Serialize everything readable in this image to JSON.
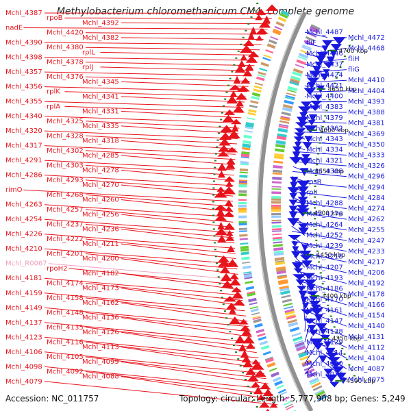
{
  "title": "Methylobacterium chloromethanicum CM4, complete genome",
  "footer": {
    "accession": "Accession: NC_011757",
    "topology": "Topology: circular; Length: 5,777,908 bp; Genes: 5,249"
  },
  "colors": {
    "forward": "#e8141c",
    "reverse": "#1818e0",
    "rna": "#f0a0c0",
    "backbone": "#909090",
    "tick": "#1a7a1a"
  },
  "scale_labels": [
    "4700 kbp",
    "4650 kbp",
    "4600 kbp",
    "4550 kbp",
    "4500 kbp",
    "4450 kbp",
    "4400 kbp",
    "4350 kbp",
    "4300 kbp"
  ],
  "left_labels": [
    {
      "t": "Mchl_4387",
      "k": "f"
    },
    {
      "t": "rpoB",
      "k": "f"
    },
    {
      "t": "Mchl_4392",
      "k": "f"
    },
    {
      "t": "nadE",
      "k": "f"
    },
    {
      "t": "Mchl_4420",
      "k": "f"
    },
    {
      "t": "Mchl_4382",
      "k": "f"
    },
    {
      "t": "Mchl_4390",
      "k": "f"
    },
    {
      "t": "Mchl_4380",
      "k": "f"
    },
    {
      "t": "rplL",
      "k": "f"
    },
    {
      "t": "Mchl_4398",
      "k": "f"
    },
    {
      "t": "Mchl_4378",
      "k": "f"
    },
    {
      "t": "rplJ",
      "k": "f"
    },
    {
      "t": "Mchl_4357",
      "k": "f"
    },
    {
      "t": "Mchl_4376",
      "k": "f"
    },
    {
      "t": "Mchl_4345",
      "k": "f"
    },
    {
      "t": "Mchl_4356",
      "k": "f"
    },
    {
      "t": "rplK",
      "k": "f"
    },
    {
      "t": "Mchl_4341",
      "k": "f"
    },
    {
      "t": "Mchl_4355",
      "k": "f"
    },
    {
      "t": "rplA",
      "k": "f"
    },
    {
      "t": "Mchl_4331",
      "k": "f"
    },
    {
      "t": "Mchl_4340",
      "k": "f"
    },
    {
      "t": "Mchl_4325",
      "k": "f"
    },
    {
      "t": "Mchl_4335",
      "k": "f"
    },
    {
      "t": "Mchl_4320",
      "k": "f"
    },
    {
      "t": "Mchl_4328",
      "k": "f"
    },
    {
      "t": "Mchl_4318",
      "k": "f"
    },
    {
      "t": "Mchl_4317",
      "k": "f"
    },
    {
      "t": "Mchl_4302",
      "k": "f"
    },
    {
      "t": "Mchl_4285",
      "k": "f"
    },
    {
      "t": "Mchl_4291",
      "k": "f"
    },
    {
      "t": "Mchl_4303",
      "k": "f"
    },
    {
      "t": "Mchl_4278",
      "k": "f"
    },
    {
      "t": "Mchl_4286",
      "k": "f"
    },
    {
      "t": "Mchl_4293",
      "k": "f"
    },
    {
      "t": "Mchl_4270",
      "k": "f"
    },
    {
      "t": "rimO",
      "k": "f"
    },
    {
      "t": "Mchl_4268",
      "k": "f"
    },
    {
      "t": "Mchl_4260",
      "k": "f"
    },
    {
      "t": "Mchl_4263",
      "k": "f"
    },
    {
      "t": "Mchl_4257",
      "k": "f"
    },
    {
      "t": "Mchl_4256",
      "k": "f"
    },
    {
      "t": "Mchl_4254",
      "k": "f"
    },
    {
      "t": "Mchl_4237",
      "k": "f"
    },
    {
      "t": "Mchl_4236",
      "k": "f"
    },
    {
      "t": "Mchl_4226",
      "k": "f"
    },
    {
      "t": "Mchl_4222",
      "k": "f"
    },
    {
      "t": "Mchl_4211",
      "k": "f"
    },
    {
      "t": "Mchl_4210",
      "k": "f"
    },
    {
      "t": "Mchl_4201",
      "k": "f"
    },
    {
      "t": "Mchl_4200",
      "k": "f"
    },
    {
      "t": "Mchl_R0067",
      "k": "r"
    },
    {
      "t": "rpoH2",
      "k": "f"
    },
    {
      "t": "Mchl_4182",
      "k": "f"
    },
    {
      "t": "Mchl_4181",
      "k": "f"
    },
    {
      "t": "Mchl_4174",
      "k": "f"
    },
    {
      "t": "Mchl_4173",
      "k": "f"
    },
    {
      "t": "Mchl_4159",
      "k": "f"
    },
    {
      "t": "Mchl_4158",
      "k": "f"
    },
    {
      "t": "Mchl_4162",
      "k": "f"
    },
    {
      "t": "Mchl_4149",
      "k": "f"
    },
    {
      "t": "Mchl_4148",
      "k": "f"
    },
    {
      "t": "Mchl_4136",
      "k": "f"
    },
    {
      "t": "Mchl_4137",
      "k": "f"
    },
    {
      "t": "Mchl_4135",
      "k": "f"
    },
    {
      "t": "Mchl_4126",
      "k": "f"
    },
    {
      "t": "Mchl_4123",
      "k": "f"
    },
    {
      "t": "Mchl_4116",
      "k": "f"
    },
    {
      "t": "Mchl_4113",
      "k": "f"
    },
    {
      "t": "Mchl_4106",
      "k": "f"
    },
    {
      "t": "Mchl_4105",
      "k": "f"
    },
    {
      "t": "Mchl_4099",
      "k": "f"
    },
    {
      "t": "Mchl_4098",
      "k": "f"
    },
    {
      "t": "Mchl_4092",
      "k": "f"
    },
    {
      "t": "Mchl_4088",
      "k": "f"
    },
    {
      "t": "Mchl_4079",
      "k": "f"
    }
  ],
  "right_labels": [
    "Mchl_4487",
    "Mchl_4472",
    "fliF",
    "Mchl_4468",
    "Mchl_4446",
    "fliH",
    "Mchl_4437",
    "fliG",
    "Mchl_4424",
    "Mchl_4410",
    "Mchl_4421",
    "Mchl_4404",
    "Mchl_4400",
    "Mchl_4393",
    "Mchl_4383",
    "Mchl_4388",
    "Mchl_4379",
    "Mchl_4381",
    "Mchl_4362",
    "Mchl_4369",
    "Mchl_4343",
    "Mchl_4350",
    "Mchl_4334",
    "Mchl_4333",
    "Mchl_4321",
    "Mchl_4326",
    "Mchl_4308",
    "Mchl_4296",
    "rpsR",
    "Mchl_4294",
    "rplI",
    "Mchl_4284",
    "Mchl_4288",
    "Mchl_4274",
    "Mchl_4276",
    "Mchl_4262",
    "Mchl_4264",
    "Mchl_4255",
    "Mchl_4252",
    "Mchl_4247",
    "Mchl_4239",
    "Mchl_4233",
    "Mchl_4218",
    "Mchl_4217",
    "Mchl_4207",
    "Mchl_4206",
    "Mchl_4193",
    "Mchl_4192",
    "Mchl_4186",
    "Mchl_4178",
    "Mchl_4170",
    "Mchl_4166",
    "Mchl_4161",
    "Mchl_4154",
    "Mchl_4147",
    "Mchl_4140",
    "Mchl_4138",
    "Mchl_4131",
    "Mchl_4129",
    "Mchl_4112",
    "Mchl_4114",
    "Mchl_4104",
    "Mchl_4090",
    "Mchl_4087",
    "Mchl_4076",
    "Mchl_4075"
  ]
}
